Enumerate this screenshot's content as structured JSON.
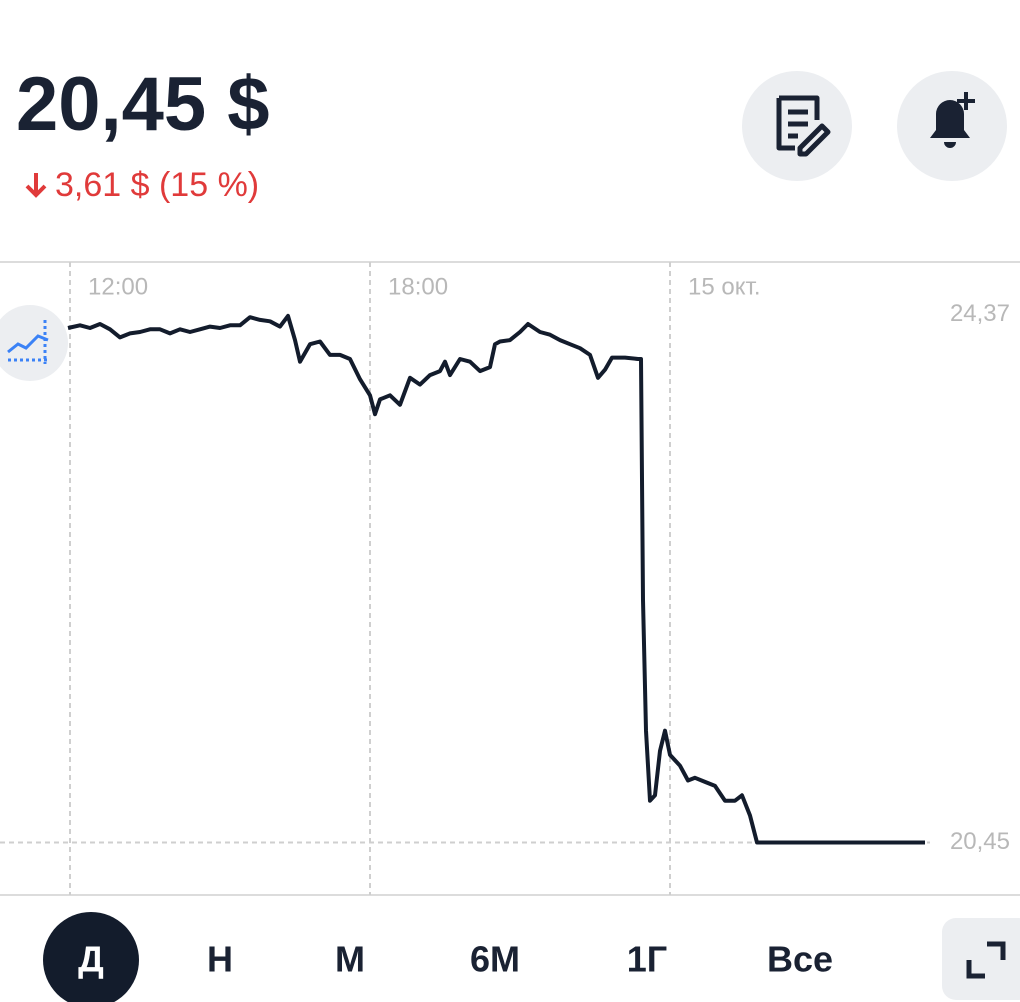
{
  "header": {
    "price": "20,45 $",
    "change": "3,61 $ (15 %)"
  },
  "chart_data": {
    "type": "line",
    "color": "#131c2c",
    "x": [
      11.96,
      12.2,
      12.4,
      12.6,
      12.8,
      13.0,
      13.2,
      13.4,
      13.6,
      13.8,
      14.0,
      14.2,
      14.4,
      14.6,
      14.8,
      15.0,
      15.2,
      15.4,
      15.6,
      15.8,
      16.0,
      16.2,
      16.36,
      16.5,
      16.6,
      16.8,
      17.0,
      17.2,
      17.4,
      17.6,
      17.8,
      18.0,
      18.1,
      18.2,
      18.4,
      18.6,
      18.8,
      19.0,
      19.2,
      19.4,
      19.5,
      19.6,
      19.8,
      20.0,
      20.2,
      20.4,
      20.5,
      20.6,
      20.8,
      21.0,
      21.16,
      21.4,
      21.6,
      21.8,
      22.0,
      22.2,
      22.4,
      22.56,
      22.7,
      22.84,
      23.1,
      23.36,
      23.42,
      23.46,
      23.52,
      23.6,
      23.7,
      23.8,
      23.9,
      24.0,
      24.2,
      24.36,
      24.5,
      24.7,
      24.9,
      25.1,
      25.3,
      25.44,
      25.6,
      25.74,
      26.6,
      29.1
    ],
    "values": [
      24.27,
      24.29,
      24.27,
      24.3,
      24.26,
      24.2,
      24.23,
      24.24,
      24.26,
      24.26,
      24.23,
      24.26,
      24.24,
      24.26,
      24.28,
      24.27,
      24.29,
      24.29,
      24.35,
      24.33,
      24.32,
      24.28,
      24.36,
      24.18,
      24.02,
      24.15,
      24.17,
      24.07,
      24.07,
      24.04,
      23.89,
      23.77,
      23.63,
      23.74,
      23.77,
      23.7,
      23.9,
      23.85,
      23.92,
      23.95,
      24.02,
      23.92,
      24.04,
      24.02,
      23.95,
      23.98,
      24.15,
      24.17,
      24.18,
      24.24,
      24.3,
      24.24,
      24.22,
      24.18,
      24.15,
      24.12,
      24.07,
      23.9,
      23.96,
      24.05,
      24.05,
      24.04,
      24.04,
      22.25,
      21.28,
      20.76,
      20.8,
      21.13,
      21.28,
      21.1,
      21.02,
      20.91,
      20.93,
      20.9,
      20.87,
      20.76,
      20.76,
      20.8,
      20.65,
      20.45,
      20.45,
      20.45
    ],
    "xlim": [
      10.6,
      31
    ],
    "ylim": [
      20.06,
      24.76
    ],
    "xticks": [
      {
        "value": 12,
        "label": "12:00"
      },
      {
        "value": 18,
        "label": "18:00"
      },
      {
        "value": 24,
        "label": "15 окт."
      }
    ],
    "yticks": [
      {
        "value": 24.37,
        "label": "24,37"
      },
      {
        "value": 20.45,
        "label": "20,45"
      }
    ],
    "grid": true
  },
  "tabs": [
    {
      "label": "Д",
      "selected": true
    },
    {
      "label": "Н",
      "selected": false
    },
    {
      "label": "М",
      "selected": false
    },
    {
      "label": "6М",
      "selected": false
    },
    {
      "label": "1Г",
      "selected": false
    },
    {
      "label": "Все",
      "selected": false
    }
  ]
}
